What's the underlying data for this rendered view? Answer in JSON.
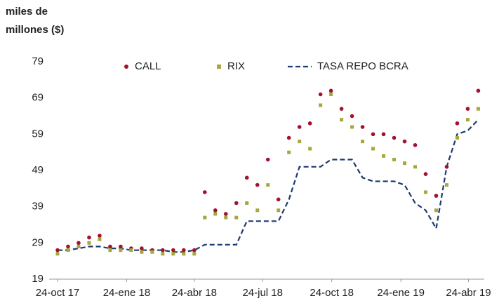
{
  "chart_data": {
    "type": "scatter-line",
    "y_label": "miles de millones ($)",
    "x": [
      "2017-10-24",
      "2017-11-07",
      "2017-11-21",
      "2017-12-05",
      "2017-12-19",
      "2018-01-02",
      "2018-01-16",
      "2018-01-30",
      "2018-02-13",
      "2018-02-27",
      "2018-03-13",
      "2018-03-27",
      "2018-04-10",
      "2018-04-24",
      "2018-05-08",
      "2018-05-22",
      "2018-06-05",
      "2018-06-19",
      "2018-07-03",
      "2018-07-17",
      "2018-07-31",
      "2018-08-14",
      "2018-08-28",
      "2018-09-11",
      "2018-09-25",
      "2018-10-09",
      "2018-10-23",
      "2018-11-06",
      "2018-11-20",
      "2018-12-04",
      "2018-12-18",
      "2019-01-01",
      "2019-01-15",
      "2019-01-29",
      "2019-02-12",
      "2019-02-26",
      "2019-03-12",
      "2019-03-26",
      "2019-04-09",
      "2019-04-23",
      "2019-05-07"
    ],
    "series": [
      {
        "name": "CALL",
        "color": "#a3112e",
        "marker": "circle",
        "values": [
          27,
          28,
          29,
          30.5,
          31,
          28,
          28,
          27.5,
          27.5,
          27,
          27,
          27,
          27,
          27,
          43,
          38,
          37,
          40,
          47,
          45,
          52,
          41,
          58,
          61,
          62,
          70,
          71,
          66,
          64,
          61,
          59,
          59,
          58,
          57,
          56,
          48,
          42,
          50,
          62,
          66,
          71
        ]
      },
      {
        "name": "RIX",
        "color": "#a5a83c",
        "marker": "square",
        "values": [
          26,
          27,
          28,
          29,
          30,
          27,
          27,
          27,
          26.5,
          26.5,
          26,
          26,
          26,
          26,
          36,
          37,
          36,
          36,
          40,
          38,
          45,
          38,
          54,
          57,
          55,
          67,
          70,
          63,
          61,
          57,
          55,
          53,
          52,
          51,
          50,
          43,
          38,
          45,
          58,
          63,
          66
        ]
      },
      {
        "name": "TASA REPO BCRA",
        "color": "#1f3a6e",
        "marker": "dashed-line",
        "values": [
          27,
          27,
          27.5,
          28,
          28,
          27.5,
          27.5,
          27,
          27,
          27,
          27,
          26.5,
          26.5,
          27,
          28.5,
          28.5,
          28.5,
          28.5,
          35,
          35,
          35,
          35,
          41,
          50,
          50,
          50,
          52,
          52,
          52,
          47,
          46,
          46,
          46,
          45,
          40,
          38,
          33,
          50,
          59,
          60,
          63
        ]
      }
    ],
    "xlim": [
      "2017-10-24",
      "2019-05-15"
    ],
    "xticks": [
      {
        "value": "2017-10-24",
        "label": "24-oct 17"
      },
      {
        "value": "2018-01-24",
        "label": "24-ene 18"
      },
      {
        "value": "2018-04-24",
        "label": "24-abr 18"
      },
      {
        "value": "2018-07-24",
        "label": "24-jul 18"
      },
      {
        "value": "2018-10-24",
        "label": "24-oct 18"
      },
      {
        "value": "2019-01-24",
        "label": "24-ene 19"
      },
      {
        "value": "2019-04-24",
        "label": "24-abr 19"
      }
    ],
    "ylim": [
      19,
      79
    ],
    "yticks": [
      19,
      29,
      39,
      49,
      59,
      69,
      79
    ],
    "grid": false,
    "legend": "top"
  }
}
